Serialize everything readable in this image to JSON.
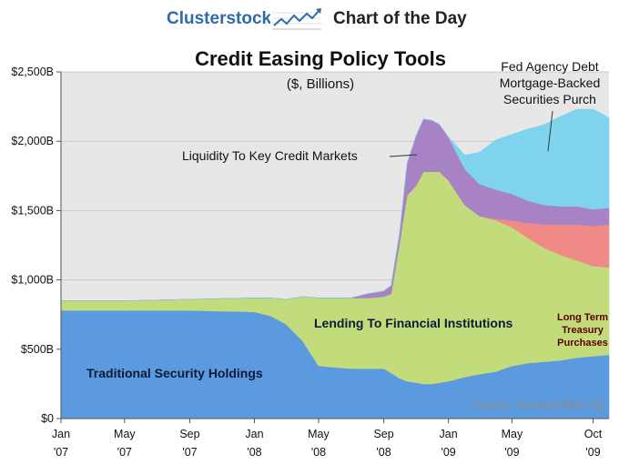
{
  "header": {
    "brand": "Clusterstock",
    "badge": "Chart of the Day",
    "logo_icon": "rising-chart-icon",
    "brand_color": "#2f6aa8"
  },
  "chart_data": {
    "type": "area",
    "stacked": true,
    "title": "Credit Easing Policy Tools",
    "subtitle": "($, Billions)",
    "source": "Source: clevelandfed.org",
    "x_domain": [
      "2007-01-01",
      "2009-10-31"
    ],
    "ylim": [
      0,
      2500
    ],
    "y_ticks": [
      0,
      500,
      1000,
      1500,
      2000,
      2500
    ],
    "y_tick_labels": [
      "$0",
      "$500B",
      "$1,000B",
      "$1,500B",
      "$2,000B",
      "$2,500B"
    ],
    "x_ticks": [
      {
        "date": "2007-01-01",
        "label1": "Jan",
        "label2": "'07"
      },
      {
        "date": "2007-05-01",
        "label1": "May",
        "label2": "'07"
      },
      {
        "date": "2007-09-01",
        "label1": "Sep",
        "label2": "'07"
      },
      {
        "date": "2008-01-01",
        "label1": "Jan",
        "label2": "'08"
      },
      {
        "date": "2008-05-01",
        "label1": "May",
        "label2": "'08"
      },
      {
        "date": "2008-09-01",
        "label1": "Sep",
        "label2": "'08"
      },
      {
        "date": "2009-01-01",
        "label1": "Jan",
        "label2": "'09"
      },
      {
        "date": "2009-05-01",
        "label1": "May",
        "label2": "'09"
      },
      {
        "date": "2009-10-01",
        "label1": "Oct",
        "label2": "'09"
      }
    ],
    "grid": true,
    "background_color": "#e7e7e7",
    "x": [
      "2007-01-01",
      "2007-05-01",
      "2007-09-01",
      "2008-01-01",
      "2008-02-01",
      "2008-03-01",
      "2008-04-01",
      "2008-05-01",
      "2008-06-01",
      "2008-07-01",
      "2008-08-01",
      "2008-09-01",
      "2008-09-15",
      "2008-10-01",
      "2008-10-15",
      "2008-11-01",
      "2008-11-15",
      "2008-12-01",
      "2008-12-15",
      "2009-01-01",
      "2009-02-01",
      "2009-03-01",
      "2009-04-01",
      "2009-05-01",
      "2009-06-01",
      "2009-07-01",
      "2009-08-01",
      "2009-09-01",
      "2009-10-01",
      "2009-10-31"
    ],
    "series": [
      {
        "name": "Traditional Security Holdings",
        "color": "#5b9ade",
        "values": [
          780,
          780,
          780,
          770,
          740,
          680,
          560,
          380,
          370,
          360,
          360,
          360,
          330,
          290,
          270,
          260,
          250,
          250,
          260,
          270,
          300,
          320,
          340,
          380,
          400,
          410,
          420,
          440,
          450,
          460
        ]
      },
      {
        "name": "Lending To Financial Institutions",
        "color": "#c2dc7c",
        "values": [
          70,
          70,
          80,
          100,
          130,
          180,
          320,
          490,
          500,
          510,
          510,
          520,
          570,
          980,
          1340,
          1420,
          1530,
          1530,
          1520,
          1450,
          1240,
          1140,
          1090,
          1000,
          900,
          820,
          760,
          700,
          650,
          630
        ]
      },
      {
        "name": "Long Term Treasury Purchases",
        "color": "#f08a87",
        "values": [
          0,
          0,
          0,
          0,
          0,
          0,
          0,
          0,
          0,
          0,
          0,
          0,
          0,
          0,
          0,
          0,
          0,
          0,
          0,
          0,
          0,
          0,
          10,
          50,
          110,
          170,
          220,
          260,
          290,
          310
        ]
      },
      {
        "name": "Liquidity To Key Credit Markets",
        "color": "#a782c4",
        "values": [
          0,
          0,
          0,
          0,
          0,
          0,
          0,
          0,
          0,
          0,
          30,
          40,
          60,
          70,
          230,
          360,
          380,
          370,
          340,
          310,
          260,
          230,
          210,
          190,
          160,
          140,
          130,
          130,
          120,
          120
        ]
      },
      {
        "name": "Fed Agency Debt Mortgage-Backed Securities Purch",
        "color": "#7fd3ec",
        "values": [
          0,
          0,
          0,
          0,
          0,
          0,
          0,
          0,
          0,
          0,
          0,
          0,
          0,
          0,
          0,
          0,
          0,
          0,
          0,
          0,
          100,
          230,
          360,
          430,
          520,
          580,
          650,
          700,
          720,
          650
        ]
      }
    ],
    "labels": {
      "liquidity": "Liquidity To Key Credit Markets",
      "lending": "Lending To Financial Institutions",
      "traditional": "Traditional Security Holdings",
      "fed_agency_1": "Fed Agency Debt",
      "fed_agency_2": "Mortgage-Backed",
      "fed_agency_3": "Securities Purch",
      "long_term_1": "Long Term",
      "long_term_2": "Treasury",
      "long_term_3": "Purchases"
    }
  }
}
